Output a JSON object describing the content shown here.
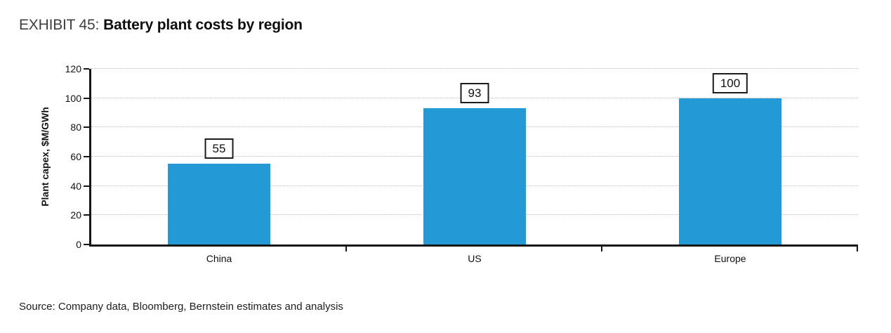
{
  "title": {
    "exhibit": "EXHIBIT 45:",
    "text": "Battery plant costs by region"
  },
  "source": "Source: Company data, Bloomberg, Bernstein estimates and analysis",
  "chart_data": {
    "type": "bar",
    "categories": [
      "China",
      "US",
      "Europe"
    ],
    "values": [
      55,
      93,
      100
    ],
    "data_labels": [
      "55",
      "93",
      "100"
    ],
    "data_label_style": "boxed",
    "title": "Battery plant costs by region",
    "xlabel": "",
    "ylabel": "Plant capex, $M/GWh",
    "ylim": [
      0,
      120
    ],
    "yticks": [
      0,
      20,
      40,
      60,
      80,
      100,
      120
    ],
    "grid": "horizontal-dotted",
    "legend": "none",
    "bar_color": "#2399d5",
    "axis_color": "#161616",
    "gridline_color": "#bdbdbd"
  }
}
